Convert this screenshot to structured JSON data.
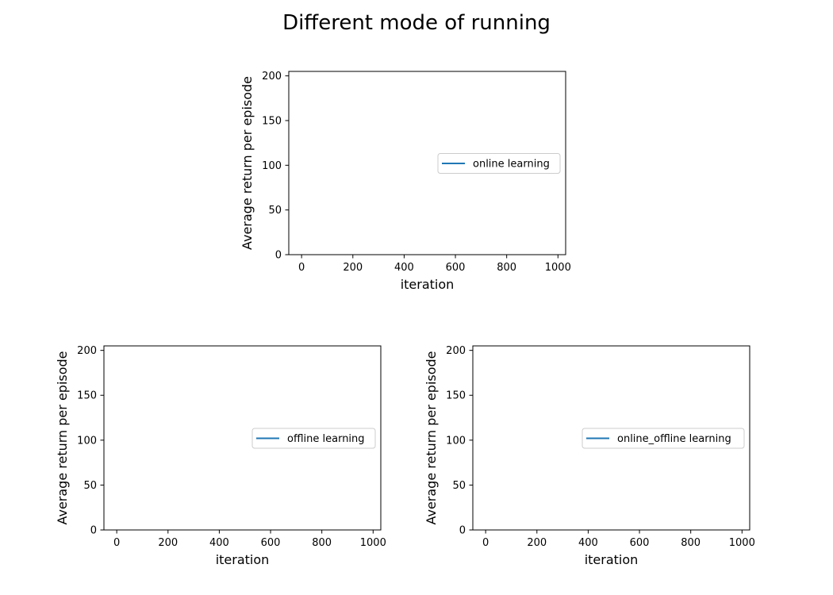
{
  "figure": {
    "title": "Different mode of running"
  },
  "chart_data": [
    {
      "type": "line",
      "xlabel": "iteration",
      "ylabel": "Average return per episode",
      "xlim": [
        -50,
        1030
      ],
      "ylim": [
        0,
        205
      ],
      "xticks": [
        0,
        200,
        400,
        600,
        800,
        1000
      ],
      "yticks": [
        0,
        50,
        100,
        150,
        200
      ],
      "legend_position": "center-right",
      "series": [
        {
          "name": "online learning",
          "color": "#1f77b4",
          "x": [],
          "y": []
        }
      ]
    },
    {
      "type": "line",
      "xlabel": "iteration",
      "ylabel": "Average return per episode",
      "xlim": [
        -50,
        1030
      ],
      "ylim": [
        0,
        205
      ],
      "xticks": [
        0,
        200,
        400,
        600,
        800,
        1000
      ],
      "yticks": [
        0,
        50,
        100,
        150,
        200
      ],
      "legend_position": "center-right",
      "series": [
        {
          "name": "offline learning",
          "color": "#1f77b4",
          "x": [],
          "y": []
        }
      ]
    },
    {
      "type": "line",
      "xlabel": "iteration",
      "ylabel": "Average return per episode",
      "xlim": [
        -50,
        1030
      ],
      "ylim": [
        0,
        205
      ],
      "xticks": [
        0,
        200,
        400,
        600,
        800,
        1000
      ],
      "yticks": [
        0,
        50,
        100,
        150,
        200
      ],
      "legend_position": "center-right",
      "series": [
        {
          "name": "online_offline learning",
          "color": "#1f77b4",
          "x": [],
          "y": []
        }
      ]
    }
  ]
}
